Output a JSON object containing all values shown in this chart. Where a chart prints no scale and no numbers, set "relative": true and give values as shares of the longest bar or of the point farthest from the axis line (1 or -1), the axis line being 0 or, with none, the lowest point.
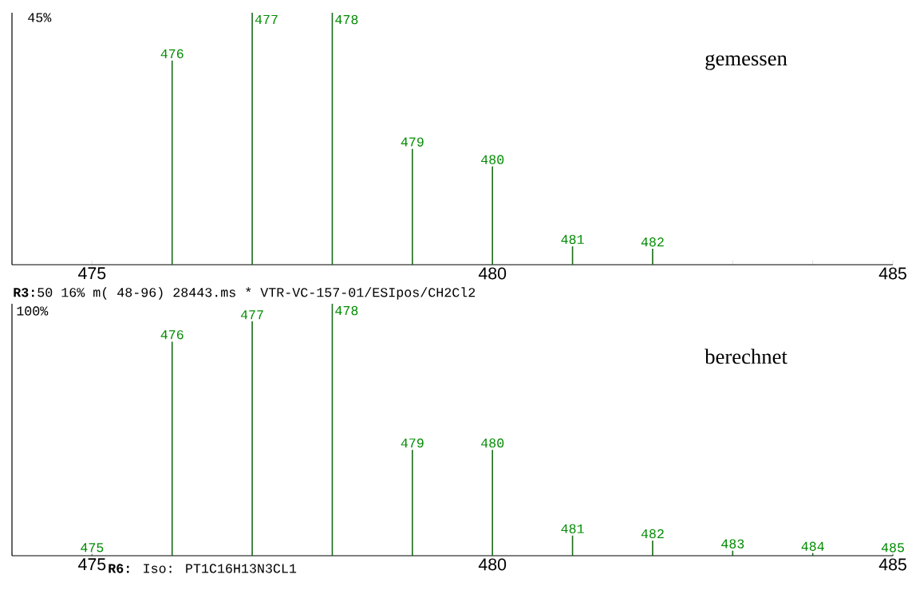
{
  "chart_data": [
    {
      "type": "bar",
      "relative": true,
      "x": [
        476,
        477,
        478,
        479,
        480,
        481,
        482
      ],
      "values": [
        0.81,
        1,
        1,
        0.46,
        0.39,
        0.073,
        0.063
      ],
      "color": "#1a6b1a",
      "xlim": [
        474,
        485
      ],
      "xticks": [
        {
          "value": 474,
          "label": null
        },
        475,
        {
          "value": 476,
          "label": null
        },
        {
          "value": 477,
          "label": null
        },
        {
          "value": 478,
          "label": null
        },
        {
          "value": 479,
          "label": null
        },
        480,
        {
          "value": 481,
          "label": null
        },
        {
          "value": 482,
          "label": null
        },
        {
          "value": 483,
          "label": null
        },
        {
          "value": 484,
          "label": null
        },
        485
      ],
      "annotations": [
        "45%",
        "gemessen",
        "**R3:**50 16% m( 48-96) 28443.ms * VTR-VC-157-01/ESIpos/CH2Cl2",
        {
          "text": "476",
          "x": 476,
          "y": 0.81
        },
        {
          "text": "477",
          "x": 477,
          "y": 1
        },
        {
          "text": "478",
          "x": 478,
          "y": 1
        },
        {
          "text": "479",
          "x": 479,
          "y": 0.46
        },
        {
          "text": "480",
          "x": 480,
          "y": 0.39
        },
        {
          "text": "481",
          "x": 481,
          "y": 0.073
        },
        {
          "text": "482",
          "x": 482,
          "y": 0.063
        }
      ]
    },
    {
      "type": "bar",
      "relative": true,
      "x": [
        475,
        476,
        477,
        478,
        479,
        480,
        481,
        482,
        483,
        484,
        485
      ],
      "values": [
        0.005,
        0.85,
        0.93,
        1,
        0.42,
        0.42,
        0.08,
        0.06,
        0.02,
        0.01,
        0.005
      ],
      "color": "#1a6b1a",
      "xlim": [
        474,
        485
      ],
      "xticks": [
        {
          "value": 474,
          "label": null
        },
        475,
        {
          "value": 476,
          "label": null
        },
        {
          "value": 477,
          "label": null
        },
        {
          "value": 478,
          "label": null
        },
        {
          "value": 479,
          "label": null
        },
        480,
        {
          "value": 481,
          "label": null
        },
        {
          "value": 482,
          "label": null
        },
        {
          "value": 483,
          "label": null
        },
        {
          "value": 484,
          "label": null
        },
        485
      ],
      "annotations": [
        "100%",
        "berechnet",
        "**R6:** Iso: PT1C16H13N3CL1",
        {
          "text": "475",
          "x": 475,
          "y": 0.005
        },
        {
          "text": "476",
          "x": 476,
          "y": 0.85
        },
        {
          "text": "477",
          "x": 477,
          "y": 0.93
        },
        {
          "text": "478",
          "x": 478,
          "y": 1
        },
        {
          "text": "479",
          "x": 479,
          "y": 0.42
        },
        {
          "text": "480",
          "x": 480,
          "y": 0.42
        },
        {
          "text": "481",
          "x": 481,
          "y": 0.08
        },
        {
          "text": "482",
          "x": 482,
          "y": 0.06
        },
        {
          "text": "483",
          "x": 483,
          "y": 0.02
        },
        {
          "text": "484",
          "x": 484,
          "y": 0.01
        },
        {
          "text": "485",
          "x": 485,
          "y": 0.005
        }
      ]
    }
  ]
}
